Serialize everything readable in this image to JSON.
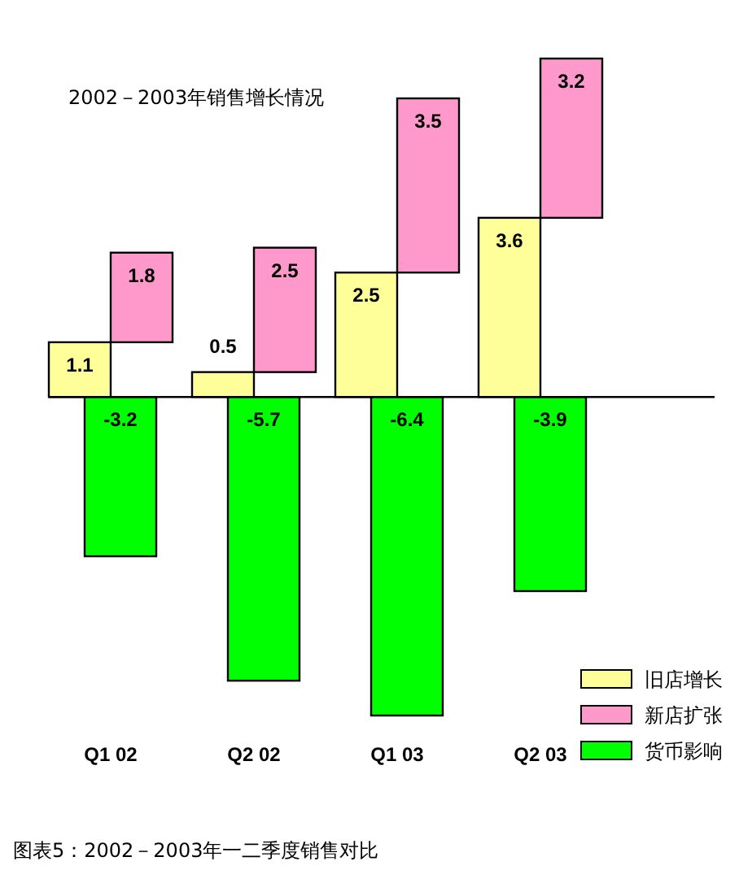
{
  "chart_data": {
    "type": "bar",
    "title": "2002－2003年销售增长情况",
    "categories": [
      "Q1 02",
      "Q2 02",
      "Q1 03",
      "Q2 03"
    ],
    "stacked": true,
    "ylim": [
      -6.4,
      6.8
    ],
    "series": [
      {
        "name": "旧店增长",
        "color": "#ffff99",
        "values": [
          1.1,
          0.5,
          2.5,
          3.6
        ]
      },
      {
        "name": "新店扩张",
        "color": "#ff99cc",
        "values": [
          1.8,
          2.5,
          3.5,
          3.2
        ]
      },
      {
        "name": "货币影响",
        "color": "#00ff00",
        "values": [
          -3.2,
          -5.7,
          -6.4,
          -3.9
        ]
      }
    ],
    "data_labels": true,
    "legend": "bottom right",
    "annotations": [
      "图表5：2002－2003年一二季度销售对比"
    ]
  }
}
